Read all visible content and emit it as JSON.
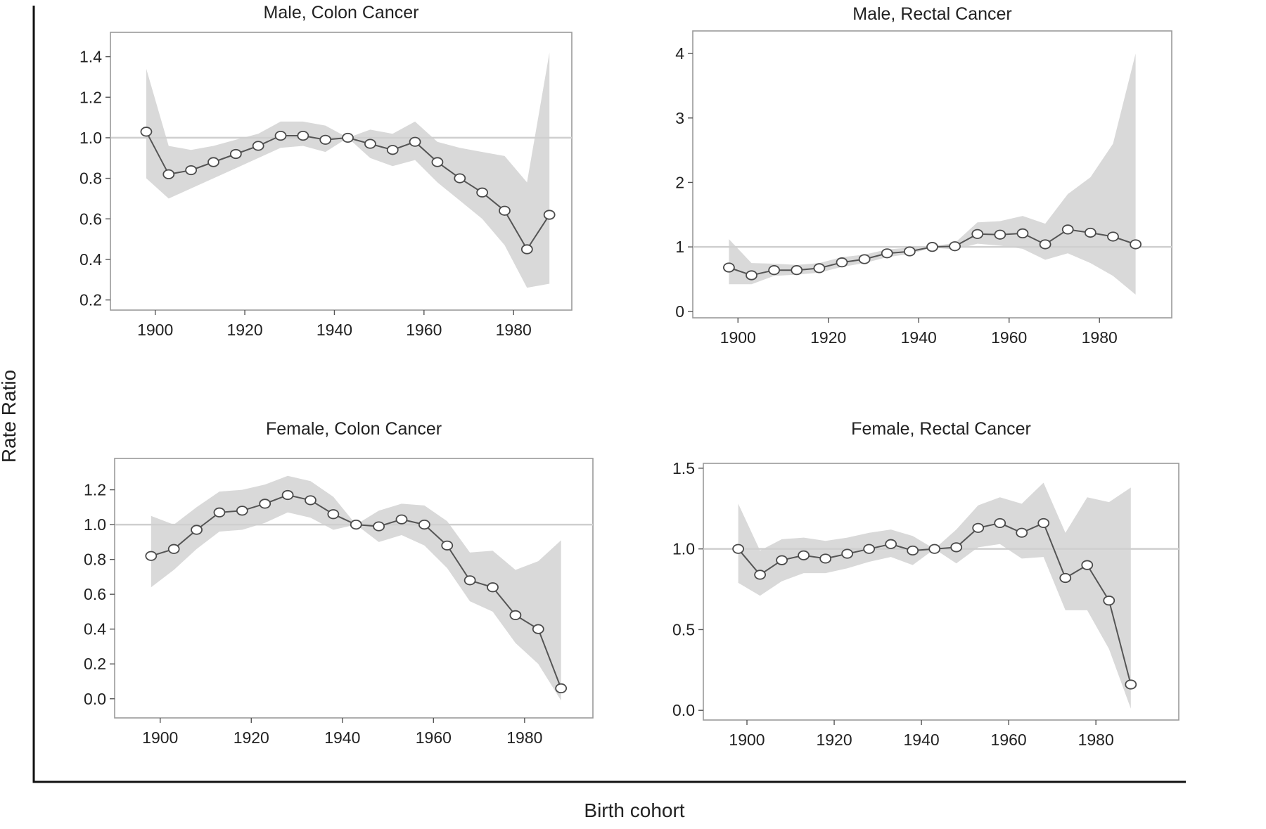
{
  "figure": {
    "ylabel": "Rate Ratio",
    "xlabel": "Birth cohort"
  },
  "chart_data": [
    {
      "type": "line",
      "title": "Male, Colon Cancer",
      "xlim": [
        1890,
        1993
      ],
      "ylim": [
        0.15,
        1.52
      ],
      "xticks": [
        1900,
        1920,
        1940,
        1960,
        1980
      ],
      "yticks": [
        "1.4",
        "1.2",
        "1.0",
        "0.8",
        "0.6",
        "0.4",
        "0.2"
      ],
      "reference": 1.0,
      "x": [
        1898,
        1903,
        1908,
        1913,
        1918,
        1923,
        1928,
        1933,
        1938,
        1943,
        1948,
        1953,
        1958,
        1963,
        1968,
        1973,
        1978,
        1983,
        1988
      ],
      "y": [
        1.03,
        0.82,
        0.84,
        0.88,
        0.92,
        0.96,
        1.01,
        1.01,
        0.99,
        1.0,
        0.97,
        0.94,
        0.98,
        0.88,
        0.8,
        0.73,
        0.64,
        0.45,
        0.62
      ],
      "lower": [
        0.8,
        0.7,
        0.75,
        0.8,
        0.85,
        0.9,
        0.95,
        0.96,
        0.93,
        1.0,
        0.9,
        0.86,
        0.89,
        0.78,
        0.69,
        0.6,
        0.47,
        0.26,
        0.28
      ],
      "upper": [
        1.34,
        0.96,
        0.94,
        0.96,
        0.99,
        1.02,
        1.08,
        1.08,
        1.06,
        1.0,
        1.04,
        1.02,
        1.08,
        0.98,
        0.95,
        0.93,
        0.91,
        0.78,
        1.42
      ]
    },
    {
      "type": "line",
      "title": "Male, Rectal Cancer",
      "xlim": [
        1890,
        1996
      ],
      "ylim": [
        -0.1,
        4.35
      ],
      "xticks": [
        1900,
        1920,
        1940,
        1960,
        1980
      ],
      "yticks": [
        "4",
        "3",
        "2",
        "1",
        "0"
      ],
      "reference": 1.0,
      "x": [
        1898,
        1903,
        1908,
        1913,
        1918,
        1923,
        1928,
        1933,
        1938,
        1943,
        1948,
        1953,
        1958,
        1963,
        1968,
        1973,
        1978,
        1983,
        1988
      ],
      "y": [
        0.68,
        0.56,
        0.64,
        0.64,
        0.67,
        0.76,
        0.81,
        0.9,
        0.93,
        1.0,
        1.01,
        1.2,
        1.19,
        1.21,
        1.04,
        1.27,
        1.22,
        1.16,
        1.04
      ],
      "lower": [
        0.42,
        0.42,
        0.55,
        0.57,
        0.6,
        0.69,
        0.75,
        0.84,
        0.89,
        0.99,
        0.96,
        1.05,
        1.02,
        0.97,
        0.8,
        0.9,
        0.75,
        0.55,
        0.26
      ],
      "upper": [
        1.12,
        0.75,
        0.74,
        0.72,
        0.75,
        0.84,
        0.88,
        0.96,
        0.99,
        1.01,
        1.06,
        1.38,
        1.4,
        1.48,
        1.36,
        1.82,
        2.08,
        2.6,
        4.0
      ]
    },
    {
      "type": "line",
      "title": "Female, Colon Cancer",
      "xlim": [
        1890,
        1995
      ],
      "ylim": [
        -0.11,
        1.38
      ],
      "xticks": [
        1900,
        1920,
        1940,
        1960,
        1980
      ],
      "yticks": [
        "1.2",
        "1.0",
        "0.8",
        "0.6",
        "0.4",
        "0.2",
        "0.0"
      ],
      "reference": 1.0,
      "x": [
        1898,
        1903,
        1908,
        1913,
        1918,
        1923,
        1928,
        1933,
        1938,
        1943,
        1948,
        1953,
        1958,
        1963,
        1968,
        1973,
        1978,
        1983,
        1988
      ],
      "y": [
        0.82,
        0.86,
        0.97,
        1.07,
        1.08,
        1.12,
        1.17,
        1.14,
        1.06,
        1.0,
        0.99,
        1.03,
        1.0,
        0.88,
        0.68,
        0.64,
        0.48,
        0.4,
        0.06
      ],
      "lower": [
        0.64,
        0.74,
        0.86,
        0.96,
        0.97,
        1.01,
        1.07,
        1.04,
        0.97,
        1.0,
        0.9,
        0.94,
        0.88,
        0.75,
        0.56,
        0.5,
        0.32,
        0.2,
        -0.01
      ],
      "upper": [
        1.05,
        1.0,
        1.1,
        1.19,
        1.2,
        1.23,
        1.28,
        1.25,
        1.16,
        1.0,
        1.08,
        1.12,
        1.11,
        1.02,
        0.84,
        0.85,
        0.74,
        0.79,
        0.91
      ]
    },
    {
      "type": "line",
      "title": "Female, Rectal Cancer",
      "xlim": [
        1890,
        1999
      ],
      "ylim": [
        -0.06,
        1.53
      ],
      "xticks": [
        1900,
        1920,
        1940,
        1960,
        1980
      ],
      "yticks": [
        "1.5",
        "1.0",
        "0.5",
        "0.0"
      ],
      "reference": 1.0,
      "x": [
        1898,
        1903,
        1908,
        1913,
        1918,
        1923,
        1928,
        1933,
        1938,
        1943,
        1948,
        1953,
        1958,
        1963,
        1968,
        1973,
        1978,
        1983,
        1988
      ],
      "y": [
        1.0,
        0.84,
        0.93,
        0.96,
        0.94,
        0.97,
        1.0,
        1.03,
        0.99,
        1.0,
        1.01,
        1.13,
        1.16,
        1.1,
        1.16,
        0.82,
        0.9,
        0.68,
        0.16
      ],
      "lower": [
        0.79,
        0.71,
        0.8,
        0.85,
        0.85,
        0.88,
        0.92,
        0.95,
        0.9,
        1.0,
        0.91,
        1.01,
        1.03,
        0.94,
        0.95,
        0.62,
        0.62,
        0.38,
        0.01
      ],
      "upper": [
        1.28,
        0.99,
        1.06,
        1.07,
        1.05,
        1.07,
        1.1,
        1.12,
        1.08,
        1.0,
        1.12,
        1.27,
        1.32,
        1.28,
        1.41,
        1.1,
        1.32,
        1.29,
        1.38
      ]
    }
  ]
}
